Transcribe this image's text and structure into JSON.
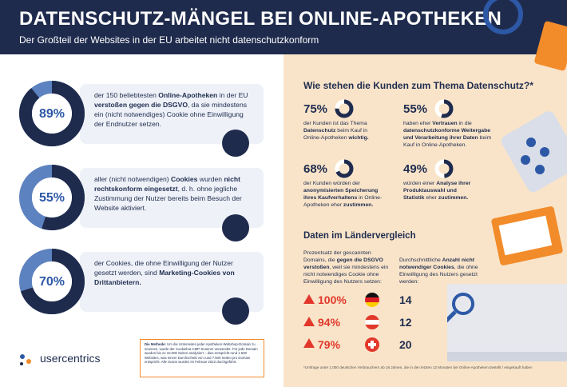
{
  "header": {
    "title": "DATENSCHUTZ-MÄNGEL BEI ONLINE-APOTHEKEN",
    "subtitle": "Der Großteil der Websites in der EU arbeitet nicht datenschutzkonform"
  },
  "left": {
    "items": [
      {
        "stat": {
          "value": 89,
          "label": "89%"
        },
        "text": [
          "der 150 beliebtesten ",
          "Online-Apotheken",
          " in der EU ",
          "verstoßen gegen die DSGVO",
          ", da sie mindestens ein (nicht notwendiges) Cookie ohne Einwilligung der Endnutzer setzen."
        ]
      },
      {
        "stat": {
          "value": 55,
          "label": "55%"
        },
        "text": [
          "aller (nicht notwendigen) ",
          "Cookies",
          " wurden ",
          "nicht rechtskonform eingesetzt",
          ", d. h. ohne jegliche Zustimmung der Nutzer bereits beim Besuch der Website aktiviert."
        ]
      },
      {
        "stat": {
          "value": 70,
          "label": "70%"
        },
        "text": [
          "der Cookies, die ohne Einwilligung der Nutzer gesetzt werden, sind ",
          "Marketing-Cookies von Drittanbietern."
        ]
      }
    ],
    "logo": "usercentrics",
    "note": [
      "Die Methode:",
      " Um die Unterseiten jeder Apotheken-Webshop-Domain zu scannen, wurde der Cookiebot CMP-Scanner verwendet. Für jede Domain wurden bis zu 10.000 Seiten analysiert – dies entspricht rund 1.500 Websites, was einem Durchschnitt von rund 7.500 Seiten pro Domain entspricht. Alle Scans wurden im Februar 2022 durchgeführt."
    ]
  },
  "right": {
    "title": "Wie stehen die Kunden zum Thema Datenschutz?*",
    "stats": [
      {
        "stat": {
          "value": 75,
          "label": "75%"
        },
        "text": [
          "der Kunden ist das Thema ",
          "Datenschutz",
          " beim Kauf in Online-Apotheken ",
          "wichtig."
        ]
      },
      {
        "stat": {
          "value": 55,
          "label": "55%"
        },
        "text": [
          "haben eher ",
          "Vertrauen",
          " in die ",
          "datenschutzkonforme Weitergabe und Verarbeitung ihrer Daten",
          " beim Kauf in Online-Apotheken."
        ]
      },
      {
        "stat": {
          "value": 68,
          "label": "68%"
        },
        "text": [
          "der Kunden würden der ",
          "anonymisierten Speicherung ihres Kaufverhaltens",
          " in Online-Apotheken eher ",
          "zustimmen."
        ]
      },
      {
        "stat": {
          "value": 49,
          "label": "49%"
        },
        "text": [
          "würden einer ",
          "Analyse ihrer Produktauswahl und Statistik",
          " eher ",
          "zustimmen."
        ]
      }
    ],
    "compare": {
      "title": "Daten im Ländervergleich",
      "desc1": [
        "Prozentsatz der gescannten Domains, die ",
        "gegen die DSGVO verstoßen",
        ", weil sie mindestens ein nicht notwendiges Cookie ohne Einwilligung des Nutzers setzen:"
      ],
      "desc2": [
        "Durchschnittliche ",
        "Anzahl nicht notwendiger Cookies",
        ", die ohne Einwilligung des Nutzers gesetzt werden:"
      ],
      "rows": [
        {
          "percent": "100%",
          "cookies": "14"
        },
        {
          "percent": "94%",
          "cookies": "12"
        },
        {
          "percent": "79%",
          "cookies": "20"
        }
      ]
    },
    "footnote": "*Umfrage unter 1.000 deutschen Verbrauchern ab 18 Jahren, die in den letzten 12 Monaten bei Online-Apotheken bestellt / eingekauft haben"
  }
}
